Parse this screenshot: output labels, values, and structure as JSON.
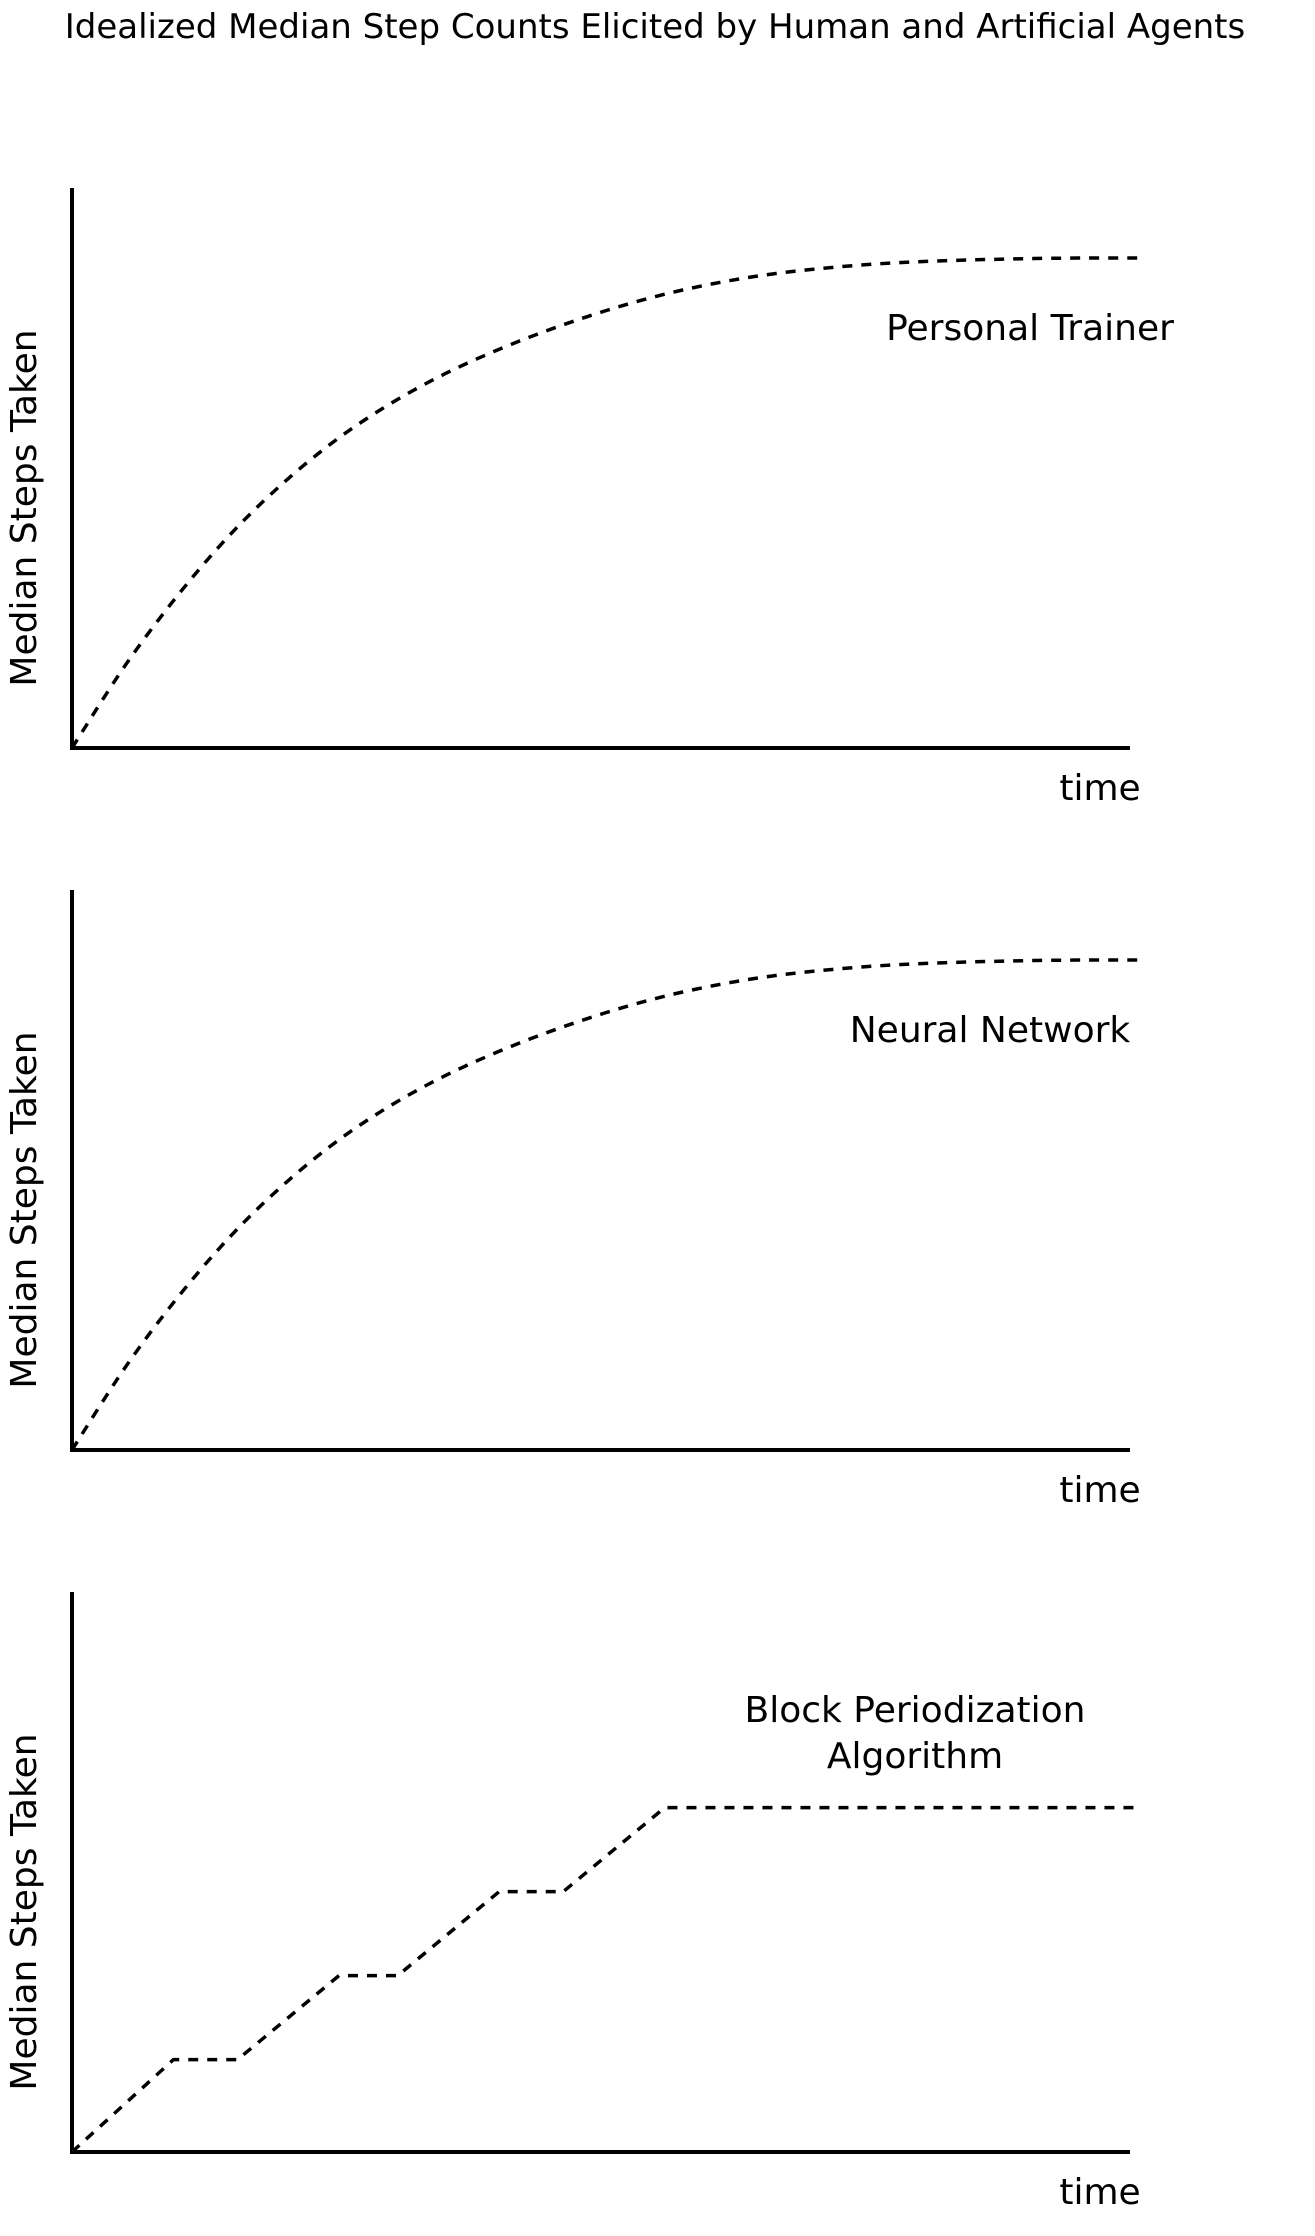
{
  "title": "Idealized Median Step Counts Elicited by Human and Artificial Agents",
  "chart_data": [
    {
      "type": "line",
      "title": "",
      "xlabel": "time",
      "ylabel": "Median Steps Taken",
      "xlim": [
        0,
        10
      ],
      "ylim": [
        0,
        10
      ],
      "grid": false,
      "ticks": false,
      "line_style": "dashed",
      "label_lines": [
        "Personal Trainer"
      ],
      "series": [
        {
          "name": "Personal Trainer",
          "x": [
            0,
            0.5,
            1,
            1.5,
            2,
            2.5,
            3,
            3.5,
            4,
            4.5,
            5,
            5.5,
            6,
            6.5,
            7,
            7.5,
            8,
            8.5,
            9,
            9.5,
            10
          ],
          "y": [
            0,
            1.48,
            2.75,
            3.85,
            4.77,
            5.54,
            6.17,
            6.69,
            7.12,
            7.49,
            7.81,
            8.08,
            8.29,
            8.45,
            8.56,
            8.64,
            8.69,
            8.72,
            8.74,
            8.75,
            8.75
          ]
        }
      ]
    },
    {
      "type": "line",
      "title": "",
      "xlabel": "time",
      "ylabel": "Median Steps Taken",
      "xlim": [
        0,
        10
      ],
      "ylim": [
        0,
        10
      ],
      "grid": false,
      "ticks": false,
      "line_style": "dashed",
      "label_lines": [
        "Neural Network"
      ],
      "series": [
        {
          "name": "Neural Network",
          "x": [
            0,
            0.5,
            1,
            1.5,
            2,
            2.5,
            3,
            3.5,
            4,
            4.5,
            5,
            5.5,
            6,
            6.5,
            7,
            7.5,
            8,
            8.5,
            9,
            9.5,
            10
          ],
          "y": [
            0,
            1.48,
            2.75,
            3.85,
            4.77,
            5.54,
            6.17,
            6.69,
            7.12,
            7.49,
            7.81,
            8.08,
            8.29,
            8.45,
            8.56,
            8.64,
            8.69,
            8.72,
            8.74,
            8.75,
            8.75
          ]
        }
      ]
    },
    {
      "type": "line",
      "title": "",
      "xlabel": "time",
      "ylabel": "Median Steps Taken",
      "xlim": [
        0,
        10
      ],
      "ylim": [
        0,
        10
      ],
      "grid": false,
      "ticks": false,
      "line_style": "dashed",
      "label_lines": [
        "Block Periodization",
        "Algorithm"
      ],
      "series": [
        {
          "name": "Block Periodization Algorithm",
          "x": [
            0,
            0.95,
            1.55,
            2.5,
            3.05,
            4.0,
            4.6,
            5.55,
            10
          ],
          "y": [
            0,
            1.65,
            1.65,
            3.15,
            3.15,
            4.65,
            4.65,
            6.15,
            6.15
          ]
        }
      ]
    }
  ]
}
